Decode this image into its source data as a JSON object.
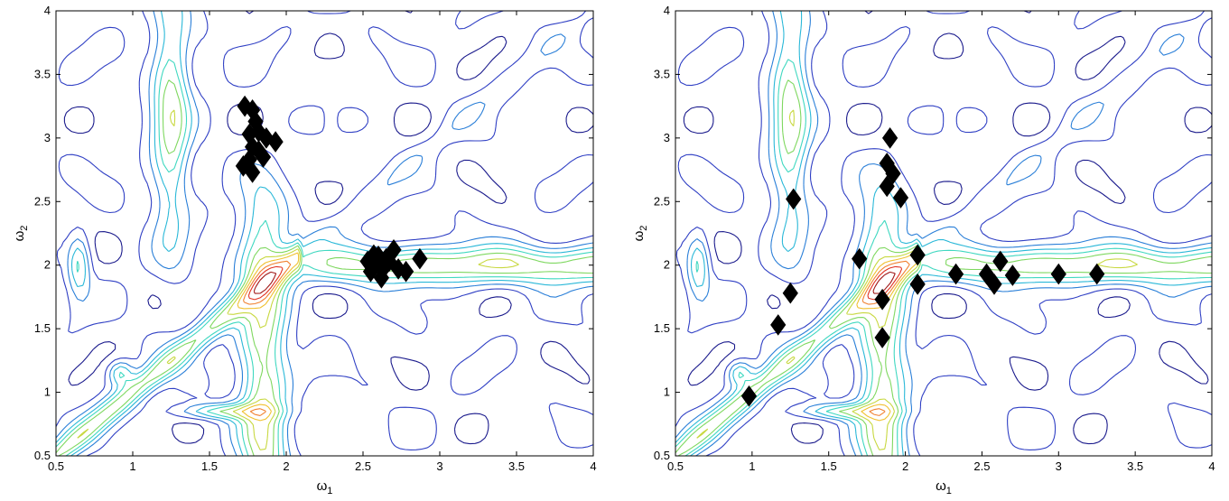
{
  "chart_data": [
    {
      "type": "scatter",
      "overlay": "contour",
      "xlabel": "ω",
      "xlabel_sub": "1",
      "ylabel": "ω",
      "ylabel_sub": "2",
      "xlim": [
        0.5,
        4
      ],
      "ylim": [
        0.5,
        4
      ],
      "xticks": [
        "0.5",
        "1",
        "1.5",
        "2",
        "2.5",
        "3",
        "3.5",
        "4"
      ],
      "yticks": [
        "0.5",
        "1",
        "1.5",
        "2",
        "2.5",
        "3",
        "3.5",
        "4"
      ],
      "marker": "diamond",
      "marker_color": "#000000",
      "points": [
        [
          1.73,
          3.25
        ],
        [
          1.78,
          3.22
        ],
        [
          1.8,
          3.13
        ],
        [
          1.76,
          3.03
        ],
        [
          1.82,
          3.05
        ],
        [
          1.87,
          3.0
        ],
        [
          1.93,
          2.97
        ],
        [
          1.78,
          2.93
        ],
        [
          1.82,
          2.9
        ],
        [
          1.76,
          2.83
        ],
        [
          1.85,
          2.85
        ],
        [
          1.72,
          2.78
        ],
        [
          1.78,
          2.73
        ],
        [
          2.53,
          2.03
        ],
        [
          2.57,
          2.0
        ],
        [
          2.6,
          2.07
        ],
        [
          2.55,
          1.95
        ],
        [
          2.63,
          1.97
        ],
        [
          2.67,
          2.03
        ],
        [
          2.7,
          2.12
        ],
        [
          2.62,
          1.9
        ],
        [
          2.73,
          1.97
        ],
        [
          2.78,
          1.95
        ],
        [
          2.87,
          2.05
        ],
        [
          2.57,
          2.08
        ],
        [
          2.65,
          2.05
        ]
      ]
    },
    {
      "type": "scatter",
      "overlay": "contour",
      "xlabel": "ω",
      "xlabel_sub": "1",
      "ylabel": "ω",
      "ylabel_sub": "2",
      "xlim": [
        0.5,
        4
      ],
      "ylim": [
        0.5,
        4
      ],
      "xticks": [
        "0.5",
        "1",
        "1.5",
        "2",
        "2.5",
        "3",
        "3.5",
        "4"
      ],
      "yticks": [
        "0.5",
        "1",
        "1.5",
        "2",
        "2.5",
        "3",
        "3.5",
        "4"
      ],
      "marker": "diamond",
      "marker_color": "#000000",
      "points": [
        [
          1.9,
          3.0
        ],
        [
          1.88,
          2.8
        ],
        [
          1.92,
          2.72
        ],
        [
          1.88,
          2.62
        ],
        [
          1.97,
          2.53
        ],
        [
          1.27,
          2.52
        ],
        [
          1.7,
          2.05
        ],
        [
          2.08,
          2.08
        ],
        [
          1.85,
          1.73
        ],
        [
          2.08,
          1.85
        ],
        [
          1.25,
          1.78
        ],
        [
          1.17,
          1.53
        ],
        [
          1.85,
          1.43
        ],
        [
          0.98,
          0.97
        ],
        [
          2.33,
          1.93
        ],
        [
          2.53,
          1.93
        ],
        [
          2.58,
          1.85
        ],
        [
          2.62,
          2.03
        ],
        [
          2.7,
          1.92
        ],
        [
          3.0,
          1.93
        ],
        [
          3.25,
          1.93
        ]
      ]
    }
  ],
  "contour_colors": [
    "#1a1a8c",
    "#2f3fc4",
    "#2a7fd8",
    "#2ab8d8",
    "#3fd8c0",
    "#7fd860",
    "#c8d840",
    "#f0c030",
    "#f08030",
    "#e03020",
    "#a01818"
  ]
}
